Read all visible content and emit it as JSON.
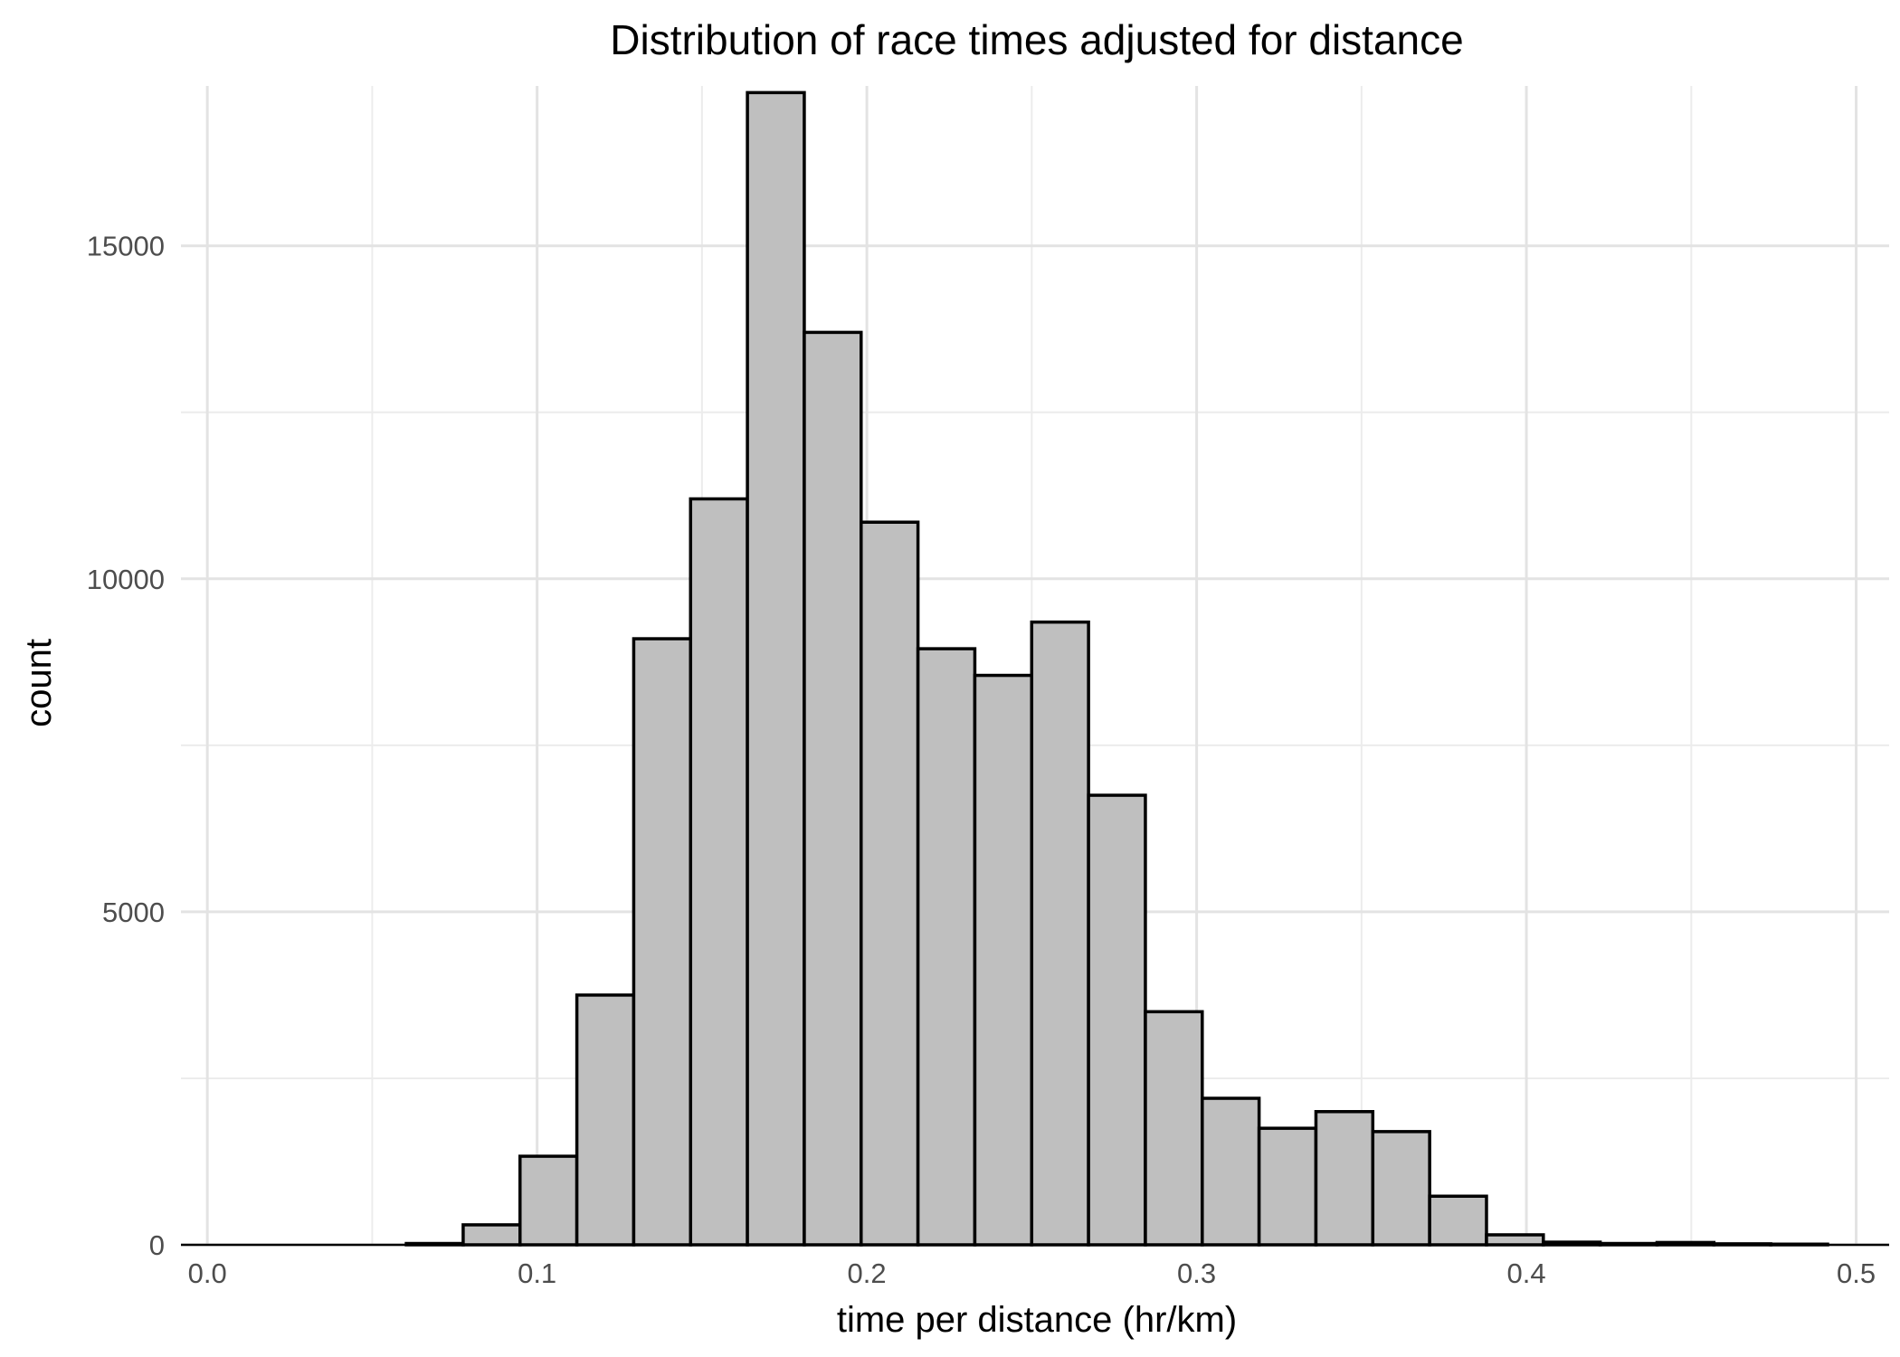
{
  "chart_data": {
    "type": "bar",
    "title": "Distribution of race times adjusted for distance",
    "xlabel": "time per distance (hr/km)",
    "ylabel": "count",
    "xlim": [
      -0.008,
      0.51
    ],
    "ylim": [
      0,
      17400
    ],
    "x_ticks": [
      0.0,
      0.1,
      0.2,
      0.3,
      0.4,
      0.5
    ],
    "x_tick_labels": [
      "0.0",
      "0.1",
      "0.2",
      "0.3",
      "0.4",
      "0.5"
    ],
    "x_minor_ticks": [
      0.05,
      0.15,
      0.25,
      0.35,
      0.45
    ],
    "y_ticks": [
      0,
      5000,
      10000,
      15000
    ],
    "y_tick_labels": [
      "0",
      "5000",
      "10000",
      "15000"
    ],
    "y_minor_ticks": [
      2500,
      7500,
      12500
    ],
    "grid": true,
    "bin_width": 0.01724,
    "bin_start": -0.00862,
    "values": [
      0,
      0,
      0,
      0,
      20,
      300,
      1330,
      3750,
      9100,
      11200,
      17300,
      13700,
      10850,
      8950,
      8550,
      9350,
      6750,
      3500,
      2200,
      1750,
      2000,
      1700,
      730,
      150,
      40,
      20,
      35,
      15,
      10
    ],
    "colors": {
      "fill": "#bfbfbf",
      "outline": "#000000",
      "grid": "#e3e3e3"
    }
  }
}
